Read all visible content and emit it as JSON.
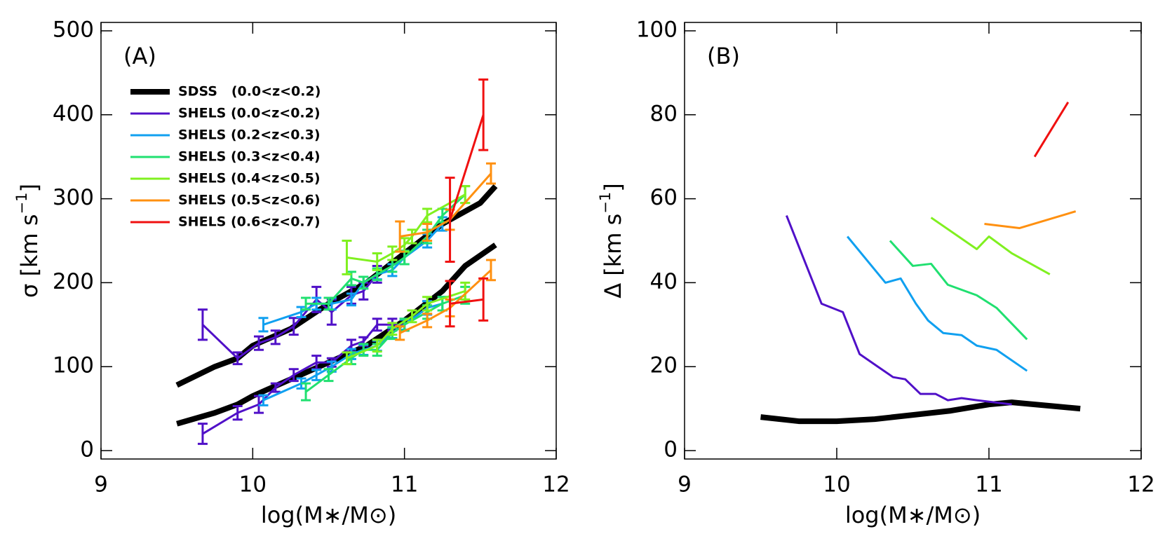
{
  "chart_data": [
    {
      "type": "line",
      "annotation": "(A)",
      "xlabel": "log(M∗/M⊙)",
      "ylabel": "σ [km s",
      "ylabel_sup": "−1",
      "ylabel_end": "]",
      "xlim": [
        9,
        12
      ],
      "ylim": [
        -10,
        510
      ],
      "xticks": [
        9,
        10,
        11,
        12
      ],
      "yticks": [
        0,
        100,
        200,
        300,
        400,
        500
      ],
      "legend": "upper left",
      "series": [
        {
          "name": "SDSS   (0.0<z<0.2)",
          "color": "#000000",
          "width": 8,
          "curves": [
            {
              "x": [
                9.5,
                9.75,
                9.9,
                10.0,
                10.25,
                10.5,
                10.75,
                11.0,
                11.25,
                11.5,
                11.6
              ],
              "values": [
                78,
                100,
                110,
                125,
                145,
                175,
                200,
                235,
                270,
                295,
                315
              ]
            },
            {
              "x": [
                9.5,
                9.75,
                9.9,
                10.0,
                10.25,
                10.5,
                10.75,
                11.0,
                11.25,
                11.4,
                11.6
              ],
              "values": [
                32,
                45,
                55,
                65,
                85,
                105,
                125,
                155,
                190,
                220,
                245
              ]
            }
          ]
        },
        {
          "name": "SHELS (0.0<z<0.2)",
          "color": "#5010c8",
          "width": 3,
          "curves": [
            {
              "x": [
                9.67,
                9.9,
                10.04,
                10.15,
                10.27,
                10.42,
                10.52,
                10.65,
                10.73,
                10.82
              ],
              "values": [
                150,
                110,
                128,
                135,
                148,
                180,
                165,
                185,
                190,
                210
              ],
              "errors": [
                18,
                7,
                8,
                8,
                10,
                15,
                15,
                10,
                10,
                10
              ]
            },
            {
              "x": [
                9.67,
                9.9,
                10.04,
                10.15,
                10.27,
                10.42,
                10.52,
                10.65,
                10.73,
                10.82,
                10.92,
                11.0,
                11.15
              ],
              "values": [
                20,
                45,
                55,
                75,
                90,
                105,
                105,
                125,
                130,
                150,
                150,
                150,
                170
              ],
              "errors": [
                12,
                8,
                10,
                5,
                7,
                8,
                5,
                7,
                5,
                7,
                7,
                7,
                8
              ]
            }
          ]
        },
        {
          "name": "SHELS (0.2<z<0.3)",
          "color": "#10a0f0",
          "width": 3,
          "curves": [
            {
              "x": [
                10.07,
                10.32,
                10.42,
                10.52,
                10.65,
                10.73,
                10.82,
                10.92,
                11.0,
                11.15,
                11.25
              ],
              "values": [
                150,
                165,
                175,
                175,
                180,
                200,
                210,
                215,
                230,
                250,
                270
              ],
              "errors": [
                8,
                6,
                7,
                7,
                7,
                7,
                6,
                7,
                8,
                8,
                8
              ]
            },
            {
              "x": [
                10.07,
                10.32,
                10.42,
                10.52,
                10.65,
                10.73,
                10.82,
                10.92,
                11.0,
                11.15,
                11.25
              ],
              "values": [
                60,
                80,
                90,
                100,
                115,
                120,
                125,
                140,
                150,
                170,
                175
              ],
              "errors": [
                6,
                6,
                6,
                6,
                6,
                6,
                6,
                6,
                6,
                8,
                8
              ]
            }
          ]
        },
        {
          "name": "SHELS (0.3<z<0.4)",
          "color": "#20e070",
          "width": 3,
          "curves": [
            {
              "x": [
                10.35,
                10.5,
                10.65,
                10.73,
                10.82,
                10.92,
                11.0,
                11.15,
                11.25,
                11.4
              ],
              "values": [
                175,
                175,
                205,
                200,
                210,
                220,
                230,
                255,
                280,
                305
              ],
              "errors": [
                7,
                7,
                8,
                7,
                7,
                7,
                8,
                8,
                8,
                10
              ]
            },
            {
              "x": [
                10.35,
                10.5,
                10.65,
                10.73,
                10.82,
                10.92,
                11.0,
                11.15,
                11.25,
                11.4
              ],
              "values": [
                70,
                90,
                110,
                120,
                120,
                140,
                150,
                165,
                175,
                185
              ],
              "errors": [
                10,
                7,
                7,
                7,
                7,
                7,
                7,
                8,
                8,
                10
              ]
            }
          ]
        },
        {
          "name": "SHELS (0.4<z<0.5)",
          "color": "#80f020",
          "width": 3,
          "curves": [
            {
              "x": [
                10.62,
                10.82,
                10.92,
                11.0,
                11.05,
                11.15,
                11.4
              ],
              "values": [
                230,
                225,
                235,
                245,
                255,
                280,
                305
              ],
              "errors": [
                20,
                10,
                8,
                8,
                8,
                8,
                10
              ]
            },
            {
              "x": [
                10.62,
                10.82,
                10.92,
                11.05,
                11.15,
                11.4
              ],
              "values": [
                110,
                125,
                145,
                160,
                175,
                190
              ],
              "errors": [
                7,
                7,
                7,
                7,
                8,
                10
              ]
            }
          ]
        },
        {
          "name": "SHELS (0.5<z<0.6)",
          "color": "#ff9010",
          "width": 3,
          "curves": [
            {
              "x": [
                10.97,
                11.15,
                11.3,
                11.57
              ],
              "values": [
                255,
                260,
                275,
                330
              ],
              "errors": [
                18,
                10,
                12,
                12
              ]
            },
            {
              "x": [
                10.97,
                11.15,
                11.3,
                11.57
              ],
              "values": [
                140,
                155,
                170,
                215
              ],
              "errors": [
                8,
                8,
                10,
                12
              ]
            }
          ]
        },
        {
          "name": "SHELS (0.6<z<0.7)",
          "color": "#f01010",
          "width": 3,
          "curves": [
            {
              "x": [
                11.3,
                11.52
              ],
              "values": [
                275,
                400
              ],
              "errors": [
                50,
                42
              ]
            },
            {
              "x": [
                11.3,
                11.52
              ],
              "values": [
                175,
                180
              ],
              "errors": [
                27,
                25
              ]
            }
          ]
        }
      ]
    },
    {
      "type": "line",
      "annotation": "(B)",
      "xlabel": "log(M∗/M⊙)",
      "ylabel": "Δ [km s",
      "ylabel_sup": "−1",
      "ylabel_end": "]",
      "xlim": [
        9,
        12
      ],
      "ylim": [
        -2,
        102
      ],
      "xticks": [
        9,
        10,
        11,
        12
      ],
      "yticks": [
        0,
        20,
        40,
        60,
        80,
        100
      ],
      "series": [
        {
          "color": "#000000",
          "width": 8,
          "x": [
            9.5,
            9.75,
            10.0,
            10.25,
            10.5,
            10.75,
            11.0,
            11.15,
            11.3,
            11.45,
            11.6
          ],
          "values": [
            8,
            7,
            7,
            7.5,
            8.5,
            9.5,
            11,
            11.5,
            11,
            10.5,
            10
          ]
        },
        {
          "color": "#5010c8",
          "width": 3,
          "x": [
            9.67,
            9.9,
            10.04,
            10.15,
            10.27,
            10.37,
            10.45,
            10.55,
            10.65,
            10.73,
            10.82,
            10.92,
            11.15
          ],
          "values": [
            56,
            35,
            33,
            23,
            20,
            17.5,
            17,
            13.5,
            13.5,
            12,
            12.5,
            12,
            11
          ]
        },
        {
          "color": "#10a0f0",
          "width": 3,
          "x": [
            10.07,
            10.32,
            10.42,
            10.52,
            10.6,
            10.7,
            10.82,
            10.92,
            11.05,
            11.25
          ],
          "values": [
            51,
            40,
            41,
            35,
            31,
            28,
            27.5,
            25,
            24,
            19
          ]
        },
        {
          "color": "#20e070",
          "width": 3,
          "x": [
            10.35,
            10.5,
            10.62,
            10.73,
            10.92,
            11.05,
            11.25
          ],
          "values": [
            50,
            44,
            44.5,
            39.5,
            37,
            34,
            26.5
          ]
        },
        {
          "color": "#80f020",
          "width": 3,
          "x": [
            10.62,
            10.8,
            10.92,
            11.0,
            11.15,
            11.4
          ],
          "values": [
            55.5,
            51,
            48,
            51,
            47,
            42
          ]
        },
        {
          "color": "#ff9010",
          "width": 3,
          "x": [
            10.97,
            11.2,
            11.57
          ],
          "values": [
            54,
            53,
            57
          ]
        },
        {
          "color": "#f01010",
          "width": 3,
          "x": [
            11.3,
            11.52
          ],
          "values": [
            70,
            83
          ]
        }
      ]
    }
  ]
}
